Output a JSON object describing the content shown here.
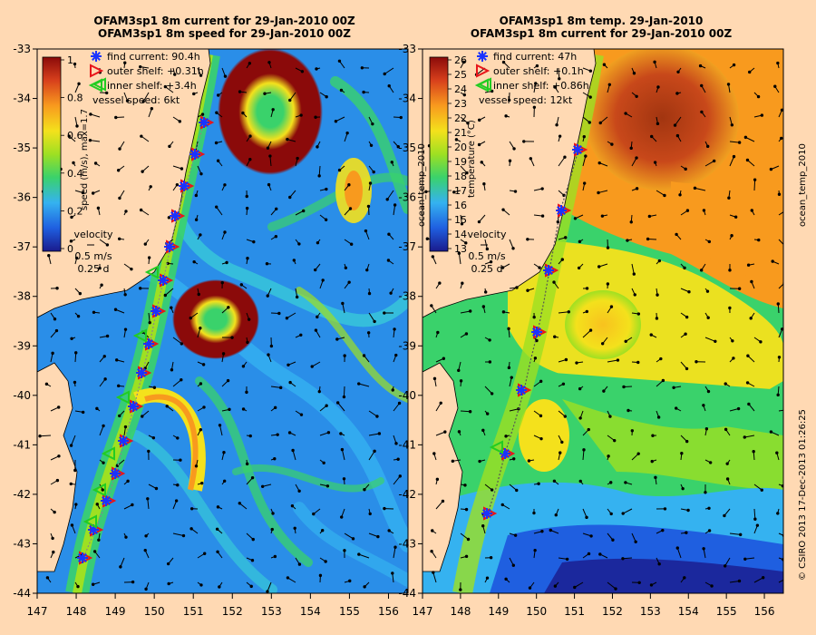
{
  "panels": [
    {
      "id": "left",
      "title_line1": "OFAM3sp1 8m current for 29-Jan-2010 00Z",
      "title_line2": "OFAM3sp1 8m speed for 29-Jan-2010 00Z",
      "colorbar_label": "speed (m/s), max=1.7",
      "colorbar_ticks": [
        "1",
        "0.8",
        "0.6",
        "0.4",
        "0.2",
        "0"
      ],
      "colorbar_colors": [
        "#1a1a8c",
        "#1f5fe0",
        "#35b2f0",
        "#3ad26b",
        "#9ee022",
        "#f4e11c",
        "#f89a1e",
        "#d8401c",
        "#8b0a0a"
      ],
      "legend": [
        {
          "symbol": "asterisk",
          "color": "#1a33ff",
          "text": "find current: 90.4h"
        },
        {
          "symbol": "triangle-right",
          "color": "#e8141a",
          "text": "outer shelf: +0.31h"
        },
        {
          "symbol": "triangle-left",
          "color": "#22cc22",
          "text": "inner shelf: +3.4h"
        },
        {
          "symbol": "none",
          "color": "#000",
          "text": "vessel speed: 6kt"
        }
      ],
      "velocity_legend": {
        "title": "velocity",
        "scale": "0.5 m/s",
        "time": "0.25 d"
      }
    },
    {
      "id": "right",
      "title_line1": "OFAM3sp1 8m temp. 29-Jan-2010",
      "title_line2": "OFAM3sp1 8m current for 29-Jan-2010 00Z",
      "colorbar_label": "temperature (°C)",
      "colorbar_side_label": "ocean_temp_2010",
      "colorbar_ticks": [
        "26",
        "25",
        "24",
        "23",
        "22",
        "21",
        "20",
        "19",
        "18",
        "17",
        "16",
        "15",
        "14",
        "13"
      ],
      "colorbar_colors": [
        "#1a1a8c",
        "#1f5fe0",
        "#35b2f0",
        "#3ad26b",
        "#9ee022",
        "#f4e11c",
        "#f89a1e",
        "#d8401c",
        "#8b0a0a"
      ],
      "legend": [
        {
          "symbol": "asterisk",
          "color": "#1a33ff",
          "text": "find current: 47h"
        },
        {
          "symbol": "triangle-right",
          "color": "#e8141a",
          "text": "outer shelf: +0.1h"
        },
        {
          "symbol": "triangle-left",
          "color": "#22cc22",
          "text": "inner shelf: +0.86h"
        },
        {
          "symbol": "none",
          "color": "#000",
          "text": "vessel speed: 12kt"
        }
      ],
      "velocity_legend": {
        "title": "velocity",
        "scale": "0.5 m/s",
        "time": "0.25 d"
      }
    }
  ],
  "axes": {
    "x_ticks": [
      "147",
      "148",
      "149",
      "150",
      "151",
      "152",
      "153",
      "154",
      "155",
      "156"
    ],
    "y_ticks": [
      "-33",
      "-34",
      "-35",
      "-36",
      "-37",
      "-38",
      "-39",
      "-40",
      "-41",
      "-42",
      "-43",
      "-44"
    ]
  },
  "side_labels": {
    "right_vertical": "ocean_temp_2010",
    "copyright": "© CSIRO 2013   17-Dec-2013 01:26:25"
  },
  "colors": {
    "land": "#ffd9b3",
    "frame": "#000000"
  }
}
